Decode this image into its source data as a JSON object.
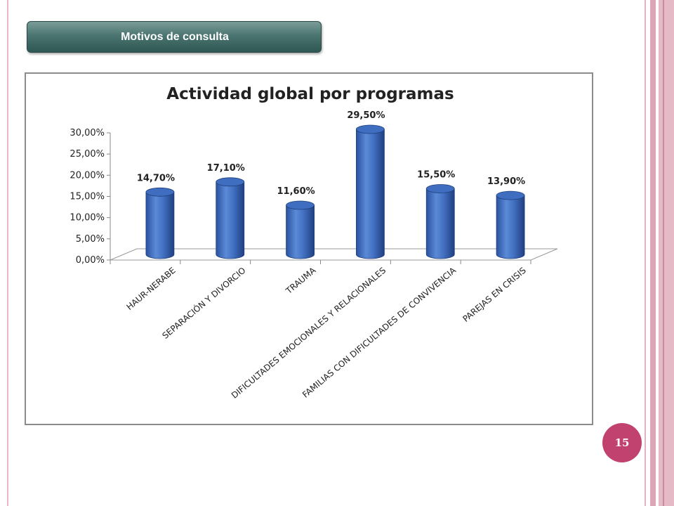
{
  "header": {
    "title": "Motivos de consulta"
  },
  "page_number": "15",
  "colors": {
    "bar": "#4472c4",
    "banner": "#4b7571",
    "page_badge": "#c2426f",
    "accent_band": "#e6b9c6"
  },
  "chart_data": {
    "type": "bar",
    "title": "Actividad global por programas",
    "categories": [
      "HAUR-NERABE",
      "SEPARACIÓN Y DIVORCIO",
      "TRAUMA",
      "DIFICULTADES EMOCIONALES Y RELACIONALES",
      "FAMILIAS CON DIFICULTADES DE CONVIVENCIA",
      "PAREJAS EN CRISIS"
    ],
    "values": [
      14.7,
      17.1,
      11.6,
      29.5,
      15.5,
      13.9
    ],
    "data_labels": [
      "14,70%",
      "17,10%",
      "11,60%",
      "29,50%",
      "15,50%",
      "13,90%"
    ],
    "ylim": [
      0,
      30
    ],
    "yticks": [
      "0,00%",
      "5,00%",
      "10,00%",
      "15,00%",
      "20,00%",
      "25,00%",
      "30,00%"
    ],
    "xlabel": "",
    "ylabel": "",
    "grid": false,
    "legend": "none",
    "style": "3d-cylinder"
  }
}
